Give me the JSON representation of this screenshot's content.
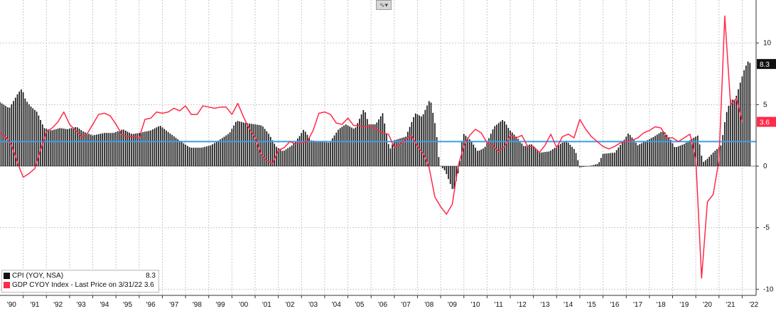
{
  "toolbar": {
    "chart_type_icon": "line-chart-icon",
    "dropdown_icon": "chevron-down-icon"
  },
  "colors": {
    "cpi": "#111111",
    "gdp": "#ff2a4a",
    "reference_line": "#3a9ee8",
    "grid": "#c8c8c8"
  },
  "legend": {
    "items": [
      {
        "label": "CPI (YOY, NSA)",
        "value": "8.3",
        "color": "#111111"
      },
      {
        "label": "GDP CYOY Index - Last Price on 3/31/22 3.6",
        "value": "",
        "color": "#ff2a4a"
      }
    ]
  },
  "chart_data": {
    "type": "bar",
    "title": "",
    "xlabel": "",
    "ylabel": "",
    "ylim": [
      -10.5,
      13.5
    ],
    "yticks": [
      10,
      5,
      0,
      -5,
      -10
    ],
    "x_tick_labels": [
      "'90",
      "'91",
      "'92",
      "'93",
      "'94",
      "'95",
      "'96",
      "'97",
      "'98",
      "'99",
      "'00",
      "'01",
      "'02",
      "'03",
      "'04",
      "'05",
      "'06",
      "'07",
      "'08",
      "'09",
      "'10",
      "'11",
      "'12",
      "'13",
      "'14",
      "'15",
      "'16",
      "'17",
      "'18",
      "'19",
      "'20",
      "'21",
      "'22"
    ],
    "x_start_year": 1990,
    "x_end_year": 2022.6,
    "reference_line": 2.0,
    "last_values": [
      {
        "series": "CPI (YOY, NSA)",
        "value": "8.3"
      },
      {
        "series": "GDP CYOY Index",
        "value": "3.6"
      }
    ],
    "series": [
      {
        "name": "CPI (YOY, NSA)",
        "type": "bar",
        "start": "1990-01",
        "frequency": "monthly",
        "anchors": [
          [
            1990.0,
            5.2
          ],
          [
            1990.4,
            4.7
          ],
          [
            1990.8,
            6.0
          ],
          [
            1990.95,
            6.3
          ],
          [
            1991.1,
            5.4
          ],
          [
            1991.3,
            4.9
          ],
          [
            1991.6,
            4.4
          ],
          [
            1991.9,
            3.1
          ],
          [
            1992.2,
            2.9
          ],
          [
            1992.6,
            3.1
          ],
          [
            1992.9,
            3.0
          ],
          [
            1993.3,
            3.2
          ],
          [
            1993.6,
            2.8
          ],
          [
            1994.0,
            2.5
          ],
          [
            1994.5,
            2.7
          ],
          [
            1994.9,
            2.7
          ],
          [
            1995.3,
            3.0
          ],
          [
            1995.7,
            2.6
          ],
          [
            1996.0,
            2.7
          ],
          [
            1996.5,
            2.9
          ],
          [
            1996.9,
            3.3
          ],
          [
            1997.3,
            2.7
          ],
          [
            1997.8,
            2.0
          ],
          [
            1998.2,
            1.5
          ],
          [
            1998.7,
            1.5
          ],
          [
            1999.1,
            1.7
          ],
          [
            1999.6,
            2.3
          ],
          [
            1999.9,
            2.7
          ],
          [
            2000.2,
            3.7
          ],
          [
            2000.6,
            3.5
          ],
          [
            2001.0,
            3.4
          ],
          [
            2001.3,
            3.3
          ],
          [
            2001.6,
            2.6
          ],
          [
            2001.9,
            1.6
          ],
          [
            2002.2,
            1.2
          ],
          [
            2002.6,
            1.7
          ],
          [
            2002.9,
            2.4
          ],
          [
            2003.1,
            3.0
          ],
          [
            2003.4,
            2.1
          ],
          [
            2003.8,
            2.0
          ],
          [
            2004.2,
            1.9
          ],
          [
            2004.6,
            3.0
          ],
          [
            2004.9,
            3.4
          ],
          [
            2005.3,
            3.0
          ],
          [
            2005.7,
            4.7
          ],
          [
            2005.9,
            3.4
          ],
          [
            2006.2,
            3.4
          ],
          [
            2006.5,
            4.3
          ],
          [
            2006.8,
            1.3
          ],
          [
            2007.0,
            2.1
          ],
          [
            2007.5,
            2.4
          ],
          [
            2007.9,
            4.3
          ],
          [
            2008.2,
            4.0
          ],
          [
            2008.55,
            5.5
          ],
          [
            2008.8,
            3.0
          ],
          [
            2008.95,
            0.1
          ],
          [
            2009.2,
            -0.4
          ],
          [
            2009.55,
            -2.1
          ],
          [
            2009.8,
            -0.2
          ],
          [
            2009.95,
            2.7
          ],
          [
            2010.3,
            2.1
          ],
          [
            2010.6,
            1.2
          ],
          [
            2010.9,
            1.5
          ],
          [
            2011.3,
            3.2
          ],
          [
            2011.7,
            3.8
          ],
          [
            2011.95,
            3.0
          ],
          [
            2012.3,
            2.3
          ],
          [
            2012.6,
            1.6
          ],
          [
            2012.9,
            1.8
          ],
          [
            2013.3,
            1.1
          ],
          [
            2013.7,
            1.2
          ],
          [
            2014.0,
            1.6
          ],
          [
            2014.4,
            2.1
          ],
          [
            2014.8,
            1.3
          ],
          [
            2015.0,
            -0.1
          ],
          [
            2015.4,
            0.0
          ],
          [
            2015.8,
            0.2
          ],
          [
            2016.0,
            1.0
          ],
          [
            2016.5,
            1.1
          ],
          [
            2016.9,
            2.1
          ],
          [
            2017.1,
            2.7
          ],
          [
            2017.5,
            1.7
          ],
          [
            2017.9,
            2.1
          ],
          [
            2018.2,
            2.4
          ],
          [
            2018.6,
            2.9
          ],
          [
            2018.9,
            2.2
          ],
          [
            2019.1,
            1.5
          ],
          [
            2019.5,
            1.8
          ],
          [
            2019.9,
            2.3
          ],
          [
            2020.1,
            2.5
          ],
          [
            2020.3,
            0.3
          ],
          [
            2020.5,
            0.6
          ],
          [
            2020.8,
            1.2
          ],
          [
            2021.1,
            1.7
          ],
          [
            2021.3,
            4.2
          ],
          [
            2021.5,
            5.4
          ],
          [
            2021.7,
            5.4
          ],
          [
            2021.95,
            7.0
          ],
          [
            2022.1,
            7.9
          ],
          [
            2022.25,
            8.5
          ],
          [
            2022.4,
            8.3
          ]
        ]
      },
      {
        "name": "GDP CYOY Index",
        "type": "line",
        "points": [
          [
            1990.0,
            2.7
          ],
          [
            1990.25,
            2.4
          ],
          [
            1990.5,
            1.7
          ],
          [
            1990.75,
            0.3
          ],
          [
            1991.0,
            -0.9
          ],
          [
            1991.25,
            -0.6
          ],
          [
            1991.5,
            -0.2
          ],
          [
            1991.75,
            1.3
          ],
          [
            1992.0,
            2.8
          ],
          [
            1992.25,
            3.1
          ],
          [
            1992.5,
            3.6
          ],
          [
            1992.75,
            4.4
          ],
          [
            1993.0,
            3.4
          ],
          [
            1993.25,
            2.9
          ],
          [
            1993.5,
            2.4
          ],
          [
            1993.75,
            2.6
          ],
          [
            1994.0,
            3.4
          ],
          [
            1994.25,
            4.2
          ],
          [
            1994.5,
            4.3
          ],
          [
            1994.75,
            4.1
          ],
          [
            1995.0,
            3.4
          ],
          [
            1995.25,
            2.6
          ],
          [
            1995.5,
            2.4
          ],
          [
            1995.75,
            2.4
          ],
          [
            1996.0,
            2.3
          ],
          [
            1996.25,
            3.8
          ],
          [
            1996.5,
            3.9
          ],
          [
            1996.75,
            4.4
          ],
          [
            1997.0,
            4.3
          ],
          [
            1997.25,
            4.4
          ],
          [
            1997.5,
            4.7
          ],
          [
            1997.75,
            4.5
          ],
          [
            1998.0,
            4.9
          ],
          [
            1998.25,
            4.2
          ],
          [
            1998.5,
            4.2
          ],
          [
            1998.75,
            4.9
          ],
          [
            1999.0,
            4.8
          ],
          [
            1999.25,
            4.7
          ],
          [
            1999.5,
            4.8
          ],
          [
            1999.75,
            4.8
          ],
          [
            2000.0,
            4.2
          ],
          [
            2000.25,
            5.1
          ],
          [
            2000.5,
            4.0
          ],
          [
            2000.75,
            3.0
          ],
          [
            2001.0,
            2.3
          ],
          [
            2001.25,
            1.0
          ],
          [
            2001.5,
            0.5
          ],
          [
            2001.75,
            0.2
          ],
          [
            2002.0,
            1.3
          ],
          [
            2002.25,
            1.5
          ],
          [
            2002.5,
            2.0
          ],
          [
            2002.75,
            1.8
          ],
          [
            2003.0,
            1.9
          ],
          [
            2003.25,
            2.0
          ],
          [
            2003.5,
            2.9
          ],
          [
            2003.75,
            4.3
          ],
          [
            2004.0,
            4.4
          ],
          [
            2004.25,
            4.2
          ],
          [
            2004.5,
            3.5
          ],
          [
            2004.75,
            3.4
          ],
          [
            2005.0,
            3.9
          ],
          [
            2005.25,
            3.3
          ],
          [
            2005.5,
            3.3
          ],
          [
            2005.75,
            3.2
          ],
          [
            2006.0,
            3.2
          ],
          [
            2006.25,
            3.0
          ],
          [
            2006.5,
            2.7
          ],
          [
            2006.75,
            2.6
          ],
          [
            2007.0,
            1.5
          ],
          [
            2007.25,
            1.8
          ],
          [
            2007.5,
            2.2
          ],
          [
            2007.75,
            2.5
          ],
          [
            2008.0,
            1.6
          ],
          [
            2008.25,
            1.0
          ],
          [
            2008.5,
            -0.1
          ],
          [
            2008.75,
            -2.5
          ],
          [
            2009.0,
            -3.3
          ],
          [
            2009.25,
            -3.9
          ],
          [
            2009.5,
            -3.1
          ],
          [
            2009.75,
            0.0
          ],
          [
            2010.0,
            1.6
          ],
          [
            2010.25,
            2.5
          ],
          [
            2010.5,
            3.0
          ],
          [
            2010.75,
            2.7
          ],
          [
            2011.0,
            1.9
          ],
          [
            2011.25,
            1.7
          ],
          [
            2011.5,
            1.2
          ],
          [
            2011.75,
            1.6
          ],
          [
            2012.0,
            2.5
          ],
          [
            2012.25,
            2.3
          ],
          [
            2012.5,
            2.5
          ],
          [
            2012.75,
            1.6
          ],
          [
            2013.0,
            1.6
          ],
          [
            2013.25,
            1.1
          ],
          [
            2013.5,
            1.7
          ],
          [
            2013.75,
            2.6
          ],
          [
            2014.0,
            1.5
          ],
          [
            2014.25,
            2.4
          ],
          [
            2014.5,
            2.6
          ],
          [
            2014.75,
            2.3
          ],
          [
            2015.0,
            3.8
          ],
          [
            2015.25,
            3.0
          ],
          [
            2015.5,
            2.4
          ],
          [
            2015.75,
            2.0
          ],
          [
            2016.0,
            1.6
          ],
          [
            2016.25,
            1.4
          ],
          [
            2016.5,
            1.6
          ],
          [
            2016.75,
            1.9
          ],
          [
            2017.0,
            2.0
          ],
          [
            2017.25,
            2.1
          ],
          [
            2017.5,
            2.3
          ],
          [
            2017.75,
            2.7
          ],
          [
            2018.0,
            2.9
          ],
          [
            2018.25,
            3.2
          ],
          [
            2018.5,
            3.1
          ],
          [
            2018.75,
            2.3
          ],
          [
            2019.0,
            2.3
          ],
          [
            2019.25,
            2.0
          ],
          [
            2019.5,
            2.3
          ],
          [
            2019.75,
            2.6
          ],
          [
            2020.0,
            0.6
          ],
          [
            2020.25,
            -9.1
          ],
          [
            2020.5,
            -2.9
          ],
          [
            2020.75,
            -2.3
          ],
          [
            2021.0,
            0.5
          ],
          [
            2021.25,
            12.2
          ],
          [
            2021.5,
            5.0
          ],
          [
            2021.75,
            5.5
          ],
          [
            2022.0,
            3.6
          ]
        ]
      }
    ],
    "grid": true,
    "legend_position": "bottom-left",
    "y_axis_position": "right"
  }
}
